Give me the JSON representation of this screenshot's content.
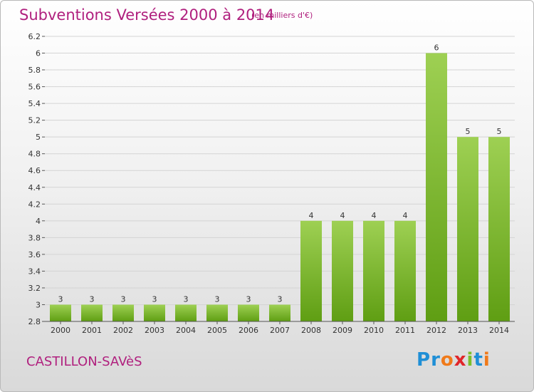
{
  "header": {
    "title": "Subventions Versées 2000 à 2014",
    "unit": "(en milliers d'€)"
  },
  "footer": {
    "commune": "CASTILLON-SAVèS",
    "logo_letters": [
      "P",
      "r",
      "o",
      "x",
      "i",
      "t",
      "i"
    ],
    "logo_colors": [
      "#1f8fd6",
      "#1f8fd6",
      "#f07a1a",
      "#e0262b",
      "#7bbf2a",
      "#1f8fd6",
      "#f07a1a"
    ]
  },
  "chart_data": {
    "type": "bar",
    "title": "Subventions Versées 2000 à 2014",
    "subtitle": "(en milliers d'€)",
    "xlabel": "",
    "ylabel": "",
    "categories": [
      "2000",
      "2001",
      "2002",
      "2003",
      "2004",
      "2005",
      "2006",
      "2007",
      "2008",
      "2009",
      "2010",
      "2011",
      "2012",
      "2013",
      "2014"
    ],
    "values": [
      3,
      3,
      3,
      3,
      3,
      3,
      3,
      3,
      4,
      4,
      4,
      4,
      6,
      5,
      5
    ],
    "ylim": [
      2.8,
      6.2
    ],
    "yticks": [
      2.8,
      3,
      3.2,
      3.4,
      3.6,
      3.8,
      4,
      4.2,
      4.4,
      4.6,
      4.8,
      5,
      5.2,
      5.4,
      5.6,
      5.8,
      6,
      6.2
    ],
    "ytick_labels": [
      "2.8",
      "3",
      "3.2",
      "3.4",
      "3.6",
      "3.8",
      "4",
      "4.2",
      "4.4",
      "4.6",
      "4.8",
      "5",
      "5.2",
      "5.4",
      "5.6",
      "5.8",
      "6",
      "6.2"
    ],
    "grid": true,
    "legend": "none",
    "bar_color_top": "#9ed053",
    "bar_color_bottom": "#5f9e13"
  }
}
